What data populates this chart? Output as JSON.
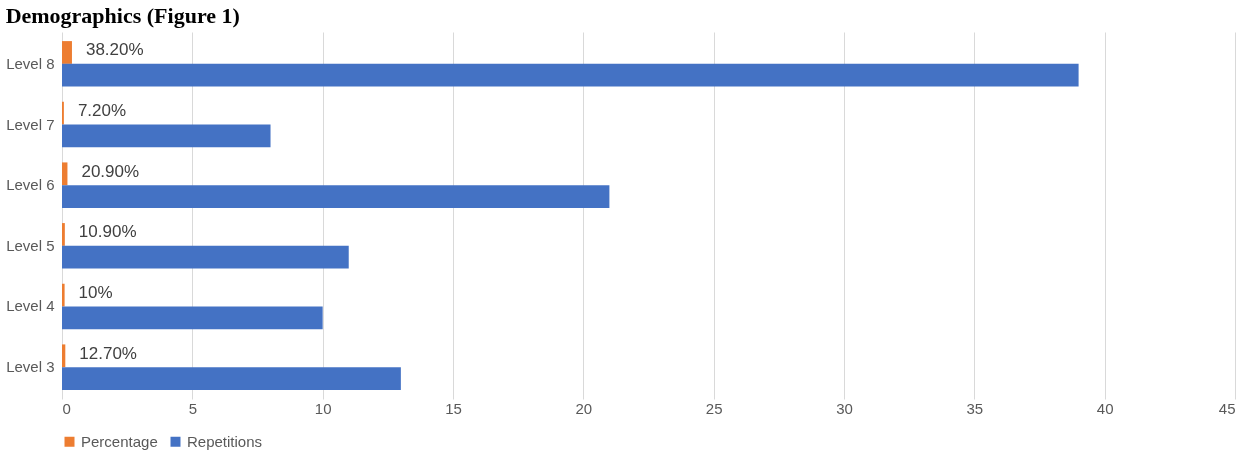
{
  "chart_data": {
    "type": "bar",
    "orientation": "horizontal",
    "title": "Demographics (Figure 1)",
    "categories": [
      "Level 8",
      "Level 7",
      "Level 6",
      "Level 5",
      "Level 4",
      "Level 3"
    ],
    "series": [
      {
        "name": "Percentage",
        "color": "#ed7d31",
        "values": [
          0.382,
          0.072,
          0.209,
          0.109,
          0.1,
          0.127
        ],
        "value_labels": [
          "38.20%",
          "7.20%",
          "20.90%",
          "10.90%",
          "10%",
          "12.70%"
        ]
      },
      {
        "name": "Repetitions",
        "color": "#4472c4",
        "values": [
          39,
          8,
          21,
          11,
          10,
          13
        ]
      }
    ],
    "xlim": [
      0,
      45
    ],
    "xticks": [
      0,
      5,
      10,
      15,
      20,
      25,
      30,
      35,
      40,
      45
    ],
    "grid": "x",
    "legend": "bottom"
  }
}
